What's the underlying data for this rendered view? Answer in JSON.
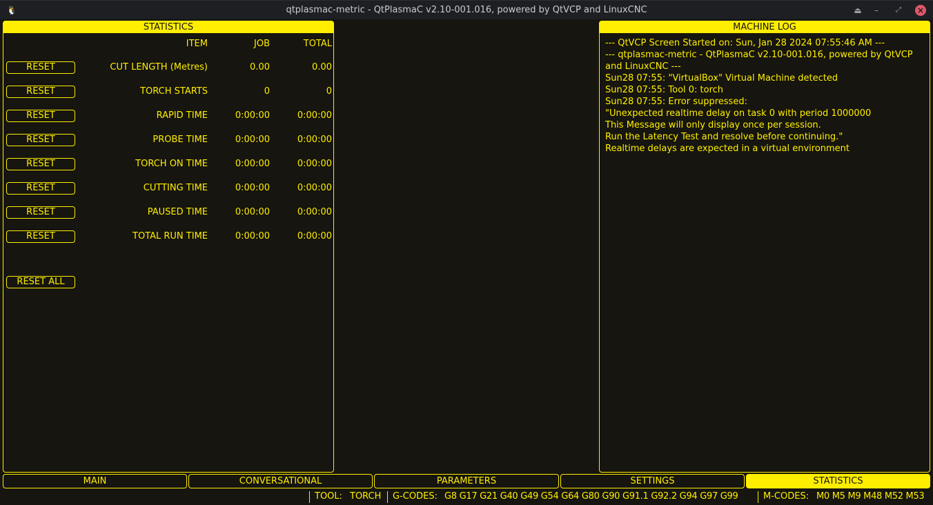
{
  "window": {
    "title": "qtplasmac-metric - QtPlasmaC v2.10-001.016, powered by QtVCP and LinuxCNC",
    "icons": [
      "tux-icon",
      "eject-icon",
      "minimize-icon",
      "maximize-icon",
      "close-icon"
    ]
  },
  "colors": {
    "accent": "#ffee00",
    "background": "#16150f",
    "titlebar": "#1e1f23",
    "close": "#e0566a"
  },
  "statistics": {
    "title": "STATISTICS",
    "headers": {
      "item": "ITEM",
      "job": "JOB",
      "total": "TOTAL"
    },
    "rows": [
      {
        "reset": "RESET",
        "item": "CUT LENGTH (Metres)",
        "job": "0.00",
        "total": "0.00"
      },
      {
        "reset": "RESET",
        "item": "TORCH STARTS",
        "job": "0",
        "total": "0"
      },
      {
        "reset": "RESET",
        "item": "RAPID TIME",
        "job": "0:00:00",
        "total": "0:00:00"
      },
      {
        "reset": "RESET",
        "item": "PROBE TIME",
        "job": "0:00:00",
        "total": "0:00:00"
      },
      {
        "reset": "RESET",
        "item": "TORCH ON TIME",
        "job": "0:00:00",
        "total": "0:00:00"
      },
      {
        "reset": "RESET",
        "item": "CUTTING TIME",
        "job": "0:00:00",
        "total": "0:00:00"
      },
      {
        "reset": "RESET",
        "item": "PAUSED TIME",
        "job": "0:00:00",
        "total": "0:00:00"
      },
      {
        "reset": "RESET",
        "item": "TOTAL RUN TIME",
        "job": "0:00:00",
        "total": "0:00:00"
      }
    ],
    "reset_all": "RESET ALL"
  },
  "machine_log": {
    "title": "MACHINE LOG",
    "lines": [
      "--- QtVCP Screen Started on: Sun, Jan 28 2024 07:55:46 AM ---",
      "--- qtplasmac-metric - QtPlasmaC v2.10-001.016, powered by QtVCP and LinuxCNC ---",
      "Sun28 07:55: \"VirtualBox\" Virtual Machine detected",
      "Sun28 07:55: Tool 0: torch",
      "Sun28 07:55: Error suppressed:",
      "\"Unexpected realtime delay on task 0 with period 1000000",
      "This Message will only display once per session.",
      "Run the Latency Test and resolve before continuing.\"",
      "Realtime delays are expected in a virtual environment"
    ]
  },
  "tabs": [
    {
      "label": "MAIN"
    },
    {
      "label": "CONVERSATIONAL"
    },
    {
      "label": "PARAMETERS"
    },
    {
      "label": "SETTINGS"
    },
    {
      "label": "STATISTICS",
      "active": true
    }
  ],
  "status": {
    "tool_label": "TOOL:",
    "tool": "TORCH",
    "gcodes_label": "G-CODES:",
    "gcodes": "G8 G17 G21 G40 G49 G54 G64 G80 G90 G91.1 G92.2 G94 G97 G99",
    "mcodes_label": "M-CODES:",
    "mcodes": "M0 M5 M9 M48 M52 M53"
  }
}
